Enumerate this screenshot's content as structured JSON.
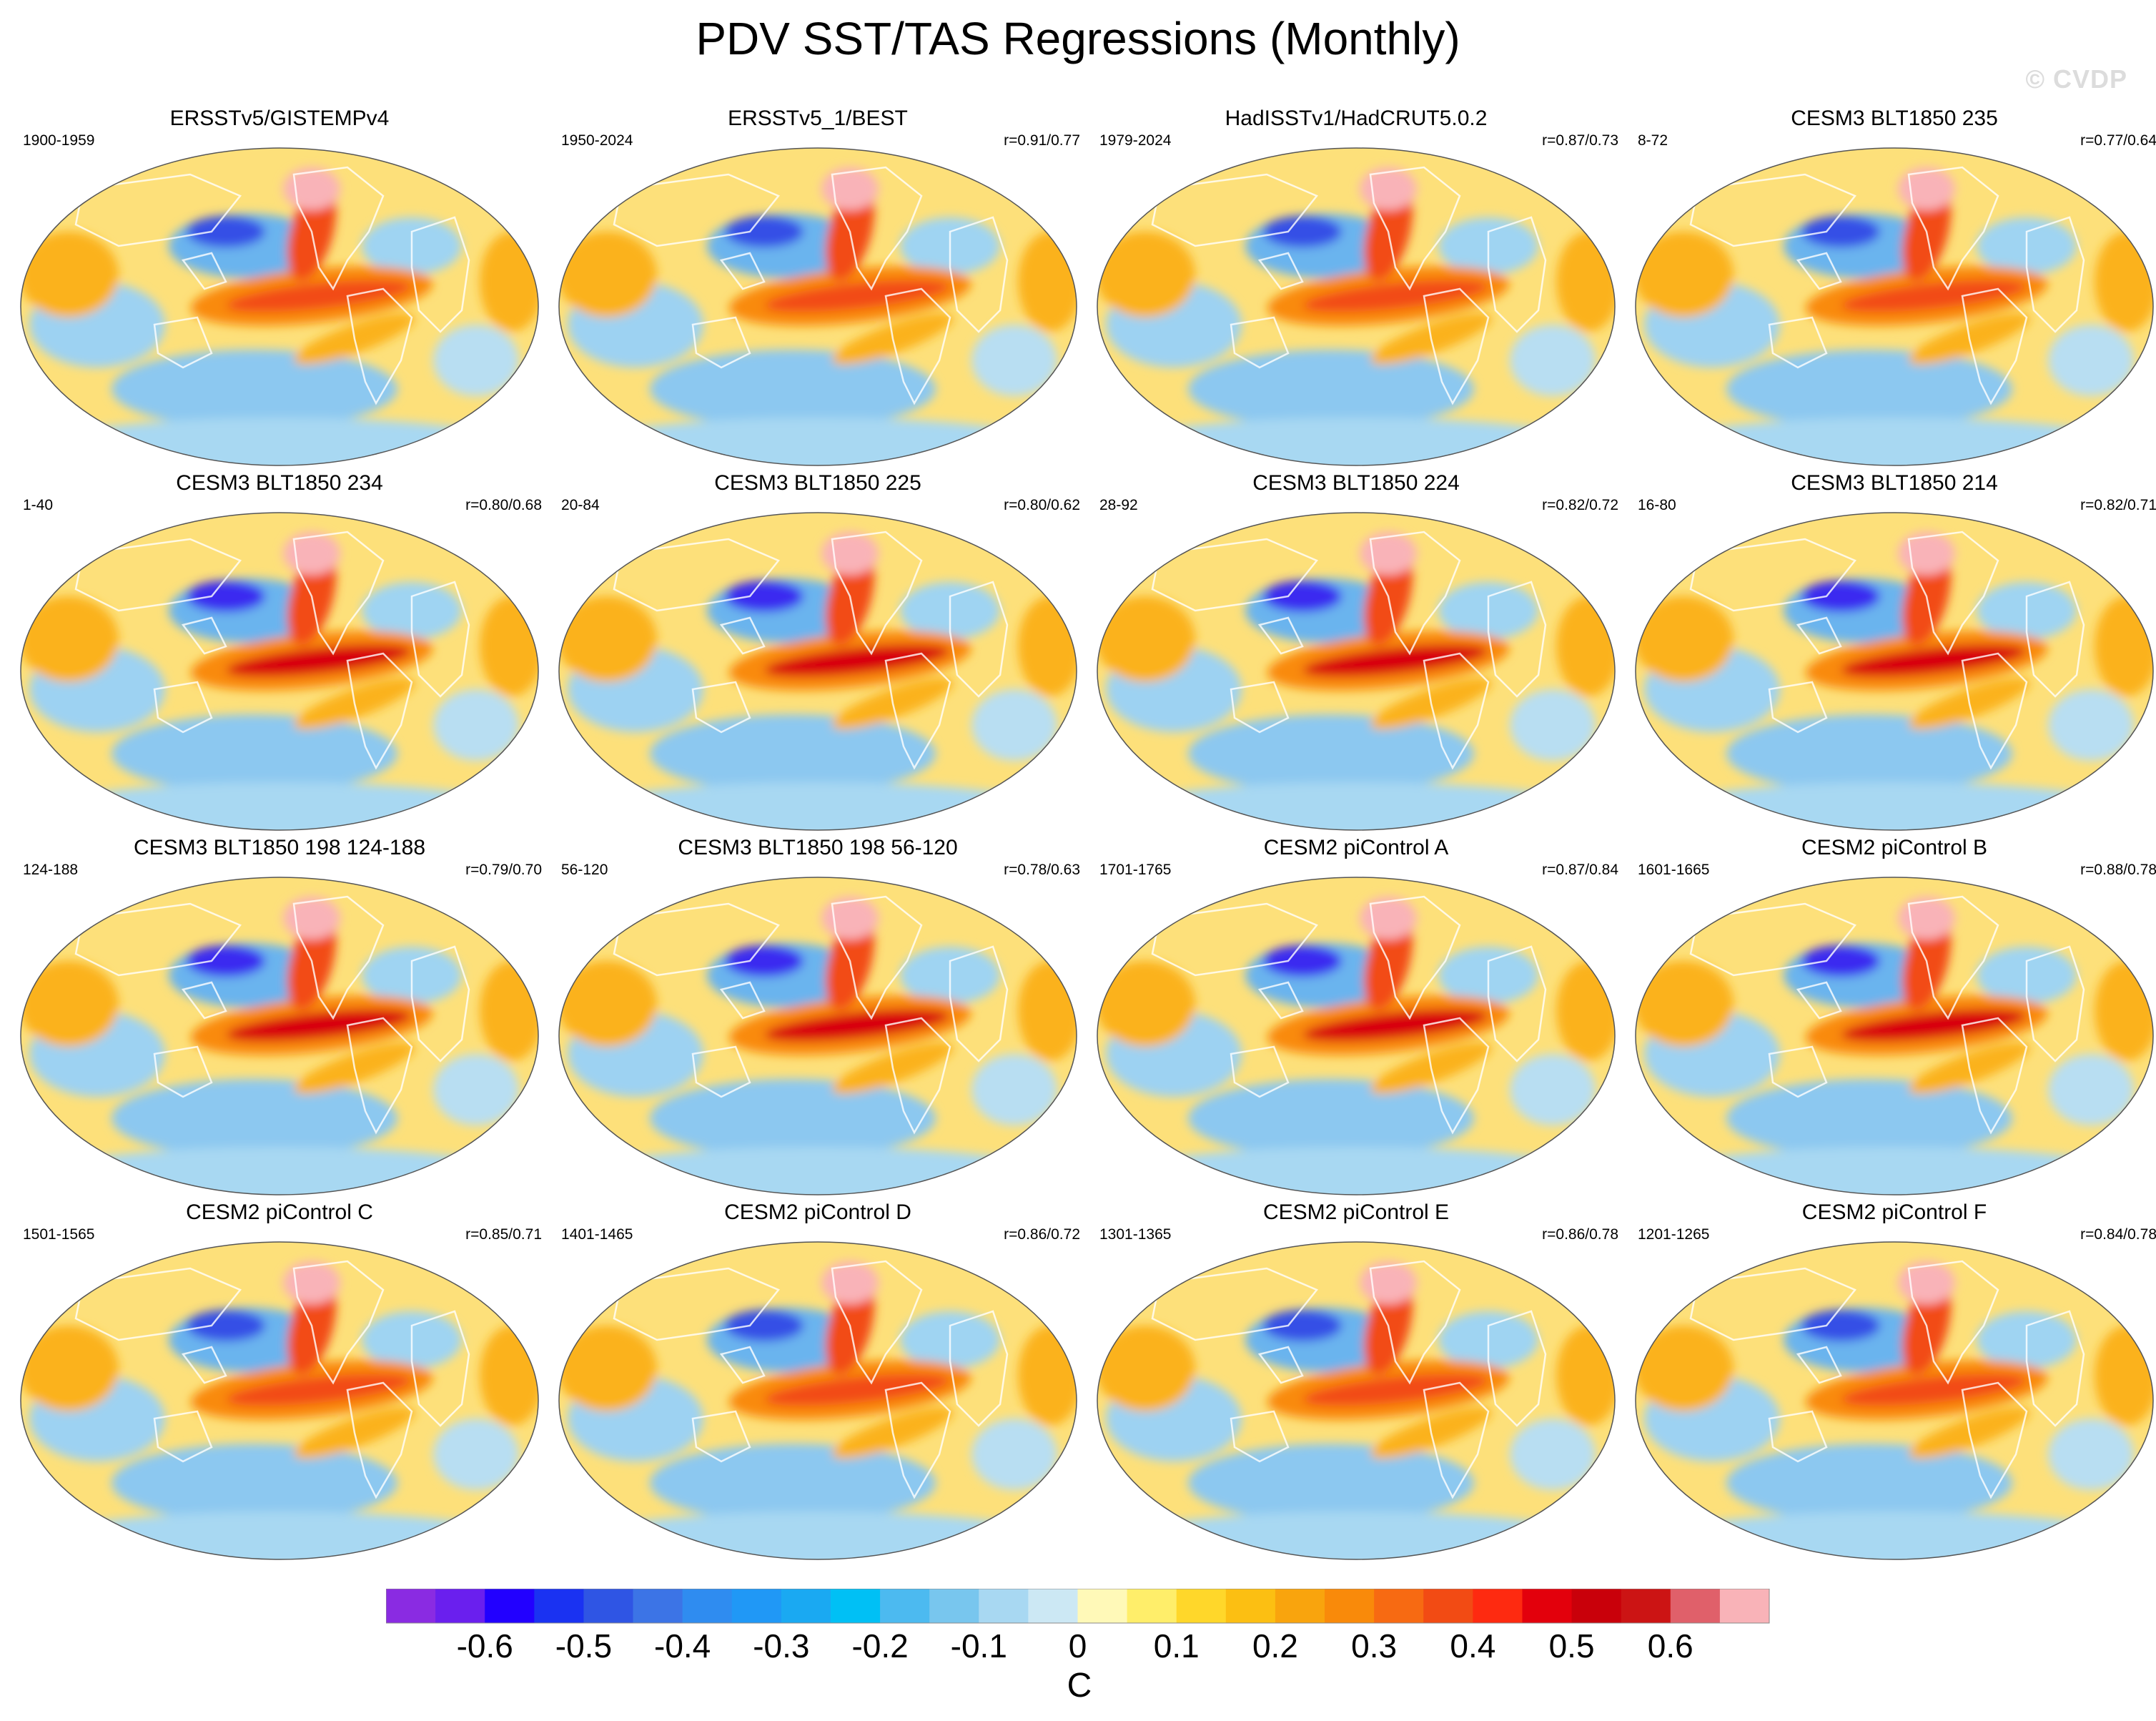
{
  "title": "PDV SST/TAS Regressions (Monthly)",
  "watermark": "© CVDP",
  "panels": [
    {
      "title": "ERSSTv5/GISTEMPv4",
      "period": "1900-1959",
      "corr": ""
    },
    {
      "title": "ERSSTv5_1/BEST",
      "period": "1950-2024",
      "corr": "r=0.91/0.77"
    },
    {
      "title": "HadISSTv1/HadCRUT5.0.2",
      "period": "1979-2024",
      "corr": "r=0.87/0.73"
    },
    {
      "title": "CESM3 BLT1850 235",
      "period": "8-72",
      "corr": "r=0.77/0.64"
    },
    {
      "title": "CESM3 BLT1850 234",
      "period": "1-40",
      "corr": "r=0.80/0.68"
    },
    {
      "title": "CESM3 BLT1850 225",
      "period": "20-84",
      "corr": "r=0.80/0.62"
    },
    {
      "title": "CESM3 BLT1850 224",
      "period": "28-92",
      "corr": "r=0.82/0.72"
    },
    {
      "title": "CESM3 BLT1850 214",
      "period": "16-80",
      "corr": "r=0.82/0.71"
    },
    {
      "title": "CESM3 BLT1850 198 124-188",
      "period": "124-188",
      "corr": "r=0.79/0.70"
    },
    {
      "title": "CESM3 BLT1850 198 56-120",
      "period": "56-120",
      "corr": "r=0.78/0.63"
    },
    {
      "title": "CESM2 piControl A",
      "period": "1701-1765",
      "corr": "r=0.87/0.84"
    },
    {
      "title": "CESM2 piControl B",
      "period": "1601-1665",
      "corr": "r=0.88/0.78"
    },
    {
      "title": "CESM2 piControl C",
      "period": "1501-1565",
      "corr": "r=0.85/0.71"
    },
    {
      "title": "CESM2 piControl D",
      "period": "1401-1465",
      "corr": "r=0.86/0.72"
    },
    {
      "title": "CESM2 piControl E",
      "period": "1301-1365",
      "corr": "r=0.86/0.78"
    },
    {
      "title": "CESM2 piControl F",
      "period": "1201-1265",
      "corr": "r=0.84/0.78"
    }
  ],
  "colorbar": {
    "unit": "C",
    "tick_labels": [
      "-0.6",
      "-0.5",
      "-0.4",
      "-0.3",
      "-0.2",
      "-0.1",
      "0",
      "0.1",
      "0.2",
      "0.3",
      "0.4",
      "0.5",
      "0.6"
    ],
    "colors": [
      "#8a2be2",
      "#6a1fee",
      "#2200ff",
      "#1a32f2",
      "#2f55e4",
      "#3c74e6",
      "#2f8cf0",
      "#2098f6",
      "#1aa9f2",
      "#00c0f5",
      "#4cbaf0",
      "#78c6ee",
      "#a8d8f2",
      "#cce8f4",
      "#fff9b8",
      "#ffee6a",
      "#ffd72a",
      "#fcbf12",
      "#f9a40d",
      "#f98a0a",
      "#f76a12",
      "#f24b14",
      "#fe2a10",
      "#e3000c",
      "#c9000a",
      "#cc1414",
      "#e0606a",
      "#f9b3b8"
    ]
  }
}
